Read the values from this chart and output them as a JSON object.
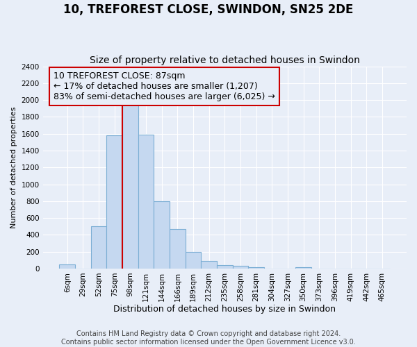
{
  "title": "10, TREFOREST CLOSE, SWINDON, SN25 2DE",
  "subtitle": "Size of property relative to detached houses in Swindon",
  "xlabel": "Distribution of detached houses by size in Swindon",
  "ylabel": "Number of detached properties",
  "footer_line1": "Contains HM Land Registry data © Crown copyright and database right 2024.",
  "footer_line2": "Contains public sector information licensed under the Open Government Licence v3.0.",
  "bar_labels": [
    "6sqm",
    "29sqm",
    "52sqm",
    "75sqm",
    "98sqm",
    "121sqm",
    "144sqm",
    "166sqm",
    "189sqm",
    "212sqm",
    "235sqm",
    "258sqm",
    "281sqm",
    "304sqm",
    "327sqm",
    "350sqm",
    "373sqm",
    "396sqm",
    "419sqm",
    "442sqm",
    "465sqm"
  ],
  "bar_values": [
    50,
    0,
    500,
    1580,
    1950,
    1590,
    800,
    470,
    200,
    90,
    40,
    30,
    20,
    0,
    0,
    15,
    0,
    0,
    0,
    0,
    0
  ],
  "bar_color": "#c5d8f0",
  "bar_edge_color": "#7baed4",
  "vline_x_index": 3.5,
  "vline_color": "#cc0000",
  "annotation_line1": "10 TREFOREST CLOSE: 87sqm",
  "annotation_line2": "← 17% of detached houses are smaller (1,207)",
  "annotation_line3": "83% of semi-detached houses are larger (6,025) →",
  "annotation_box_edgecolor": "#cc0000",
  "ylim": [
    0,
    2400
  ],
  "yticks": [
    0,
    200,
    400,
    600,
    800,
    1000,
    1200,
    1400,
    1600,
    1800,
    2000,
    2200,
    2400
  ],
  "background_color": "#e8eef8",
  "grid_color": "#ffffff",
  "title_fontsize": 12,
  "subtitle_fontsize": 10,
  "xlabel_fontsize": 9,
  "ylabel_fontsize": 8,
  "tick_fontsize": 7.5,
  "annotation_fontsize": 9,
  "footer_fontsize": 7
}
